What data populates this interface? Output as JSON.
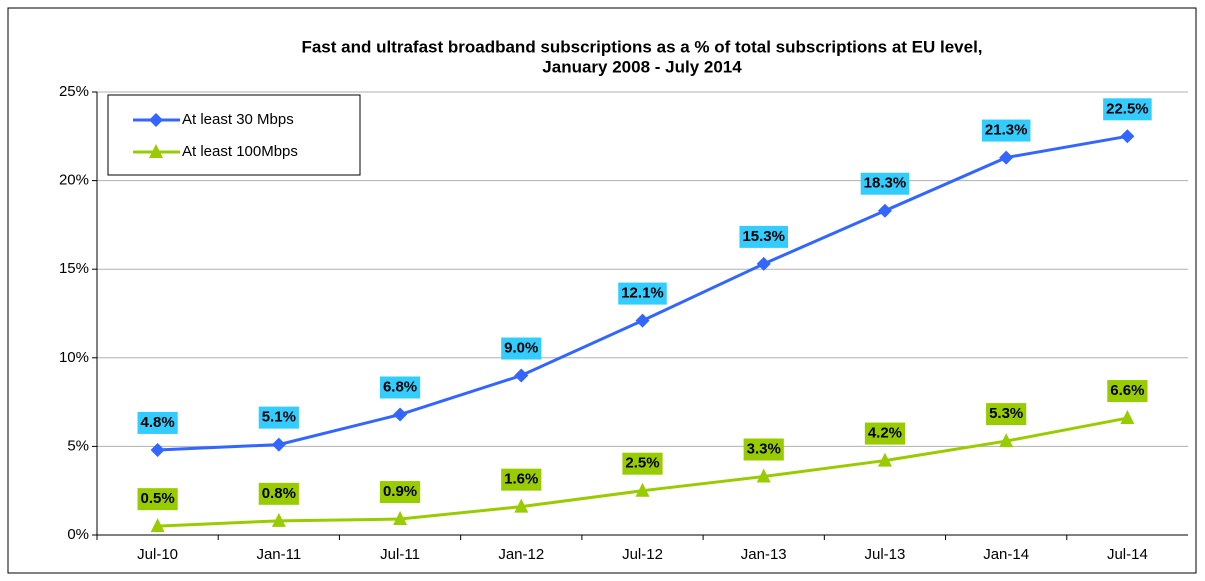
{
  "chart_data": {
    "type": "line",
    "title": [
      "Fast and ultrafast broadband subscriptions as a % of total subscriptions at EU level,",
      "January 2008 - July 2014"
    ],
    "categories": [
      "Jul-10",
      "Jan-11",
      "Jul-11",
      "Jan-12",
      "Jul-12",
      "Jan-13",
      "Jul-13",
      "Jan-14",
      "Jul-14"
    ],
    "series": [
      {
        "name": "At least 30 Mbps",
        "color": "#3366ff",
        "label_color": "#33ccff",
        "marker": "diamond",
        "values": [
          4.8,
          5.1,
          6.8,
          9.0,
          12.1,
          15.3,
          18.3,
          21.3,
          22.5
        ],
        "value_labels": [
          "4.8%",
          "5.1%",
          "6.8%",
          "9.0%",
          "12.1%",
          "15.3%",
          "18.3%",
          "21.3%",
          "22.5%"
        ]
      },
      {
        "name": "At least 100Mbps",
        "color": "#99cc00",
        "label_color": "#99cc00",
        "marker": "triangle",
        "values": [
          0.5,
          0.8,
          0.9,
          1.6,
          2.5,
          3.3,
          4.2,
          5.3,
          6.6
        ],
        "value_labels": [
          "0.5%",
          "0.8%",
          "0.9%",
          "1.6%",
          "2.5%",
          "3.3%",
          "4.2%",
          "5.3%",
          "6.6%"
        ]
      }
    ],
    "ylim": [
      0,
      25
    ],
    "yticks": [
      {
        "value": 0,
        "label": "0%"
      },
      {
        "value": 5,
        "label": "5%"
      },
      {
        "value": 10,
        "label": "10%"
      },
      {
        "value": 15,
        "label": "15%"
      },
      {
        "value": 20,
        "label": "20%"
      },
      {
        "value": 25,
        "label": "25%"
      }
    ],
    "grid": true,
    "legend": "top-left"
  }
}
